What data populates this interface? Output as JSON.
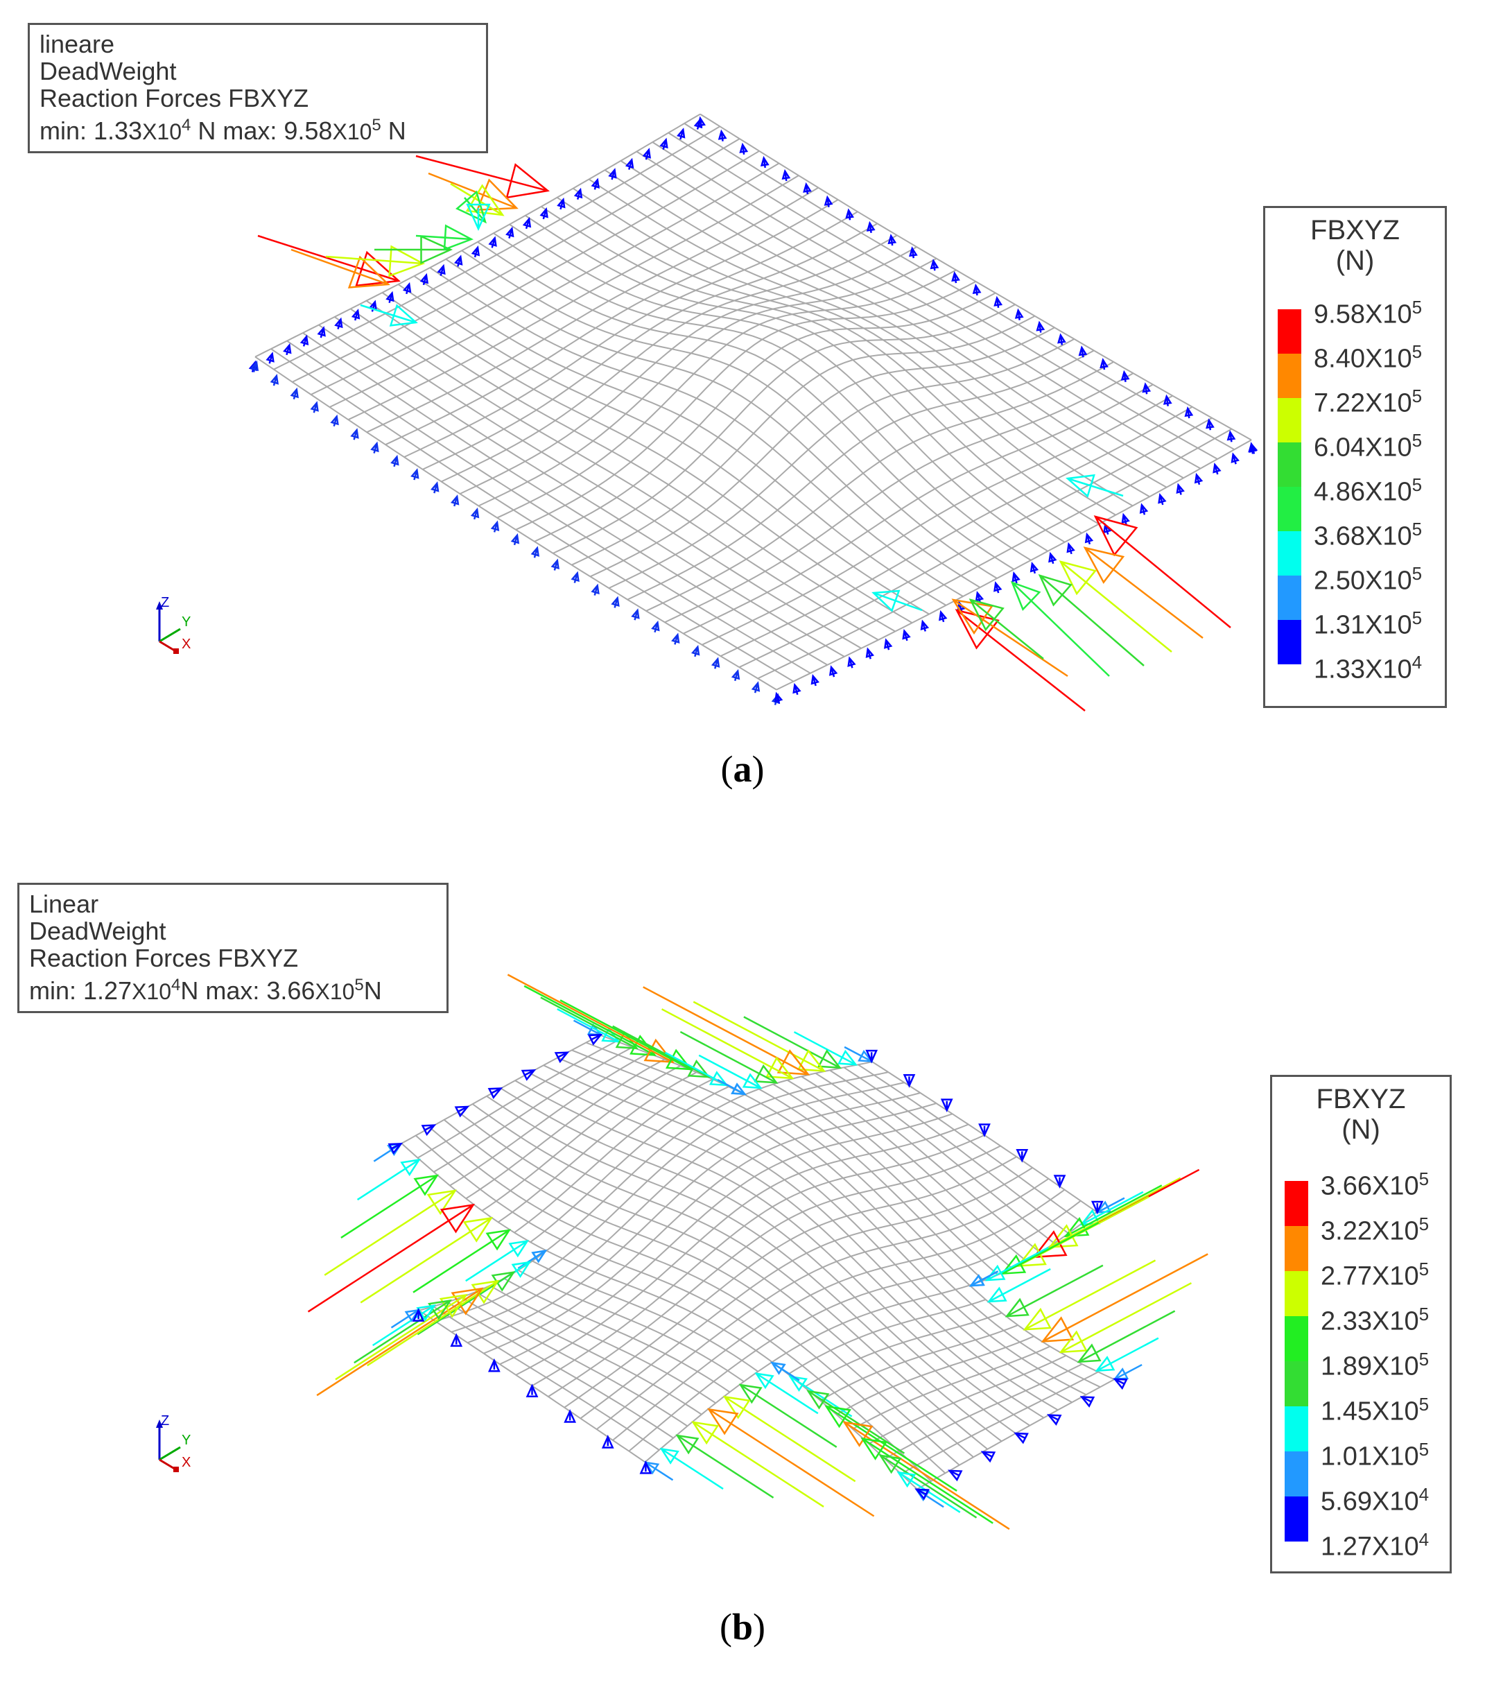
{
  "panel_a": {
    "info": {
      "line1": "lineare",
      "line2": "DeadWeight",
      "line3": "Reaction Forces FBXYZ",
      "range_prefix": "min: 1.33",
      "range_min_times": "X10",
      "range_min_exp": "4",
      "range_mid": " N max: 9.58",
      "range_max_times": "X10",
      "range_max_exp": "5",
      "range_suffix": " N"
    },
    "legend": {
      "title": "FBXYZ",
      "unit": "(N)",
      "ticks": [
        {
          "mant": "9.58",
          "exp": "5"
        },
        {
          "mant": "8.40",
          "exp": "5"
        },
        {
          "mant": "7.22",
          "exp": "5"
        },
        {
          "mant": "6.04",
          "exp": "5"
        },
        {
          "mant": "4.86",
          "exp": "5"
        },
        {
          "mant": "3.68",
          "exp": "5"
        },
        {
          "mant": "2.50",
          "exp": "5"
        },
        {
          "mant": "1.31",
          "exp": "5"
        },
        {
          "mant": "1.33",
          "exp": "4"
        }
      ],
      "colors": [
        "#ff0000",
        "#ff8800",
        "#ccff00",
        "#33dd33",
        "#22ee44",
        "#00ffee",
        "#2299ff",
        "#0000ff"
      ]
    },
    "caption": "a"
  },
  "panel_b": {
    "info": {
      "line1": "Linear",
      "line2": "DeadWeight",
      "line3": "Reaction Forces FBXYZ",
      "range_prefix": "min: 1.27",
      "range_min_times": "X10",
      "range_min_exp": "4",
      "range_mid": "N max: 3.66",
      "range_max_times": "X10",
      "range_max_exp": "5",
      "range_suffix": "N"
    },
    "legend": {
      "title": "FBXYZ",
      "unit": "(N)",
      "ticks": [
        {
          "mant": "3.66",
          "exp": "5"
        },
        {
          "mant": "3.22",
          "exp": "5"
        },
        {
          "mant": "2.77",
          "exp": "5"
        },
        {
          "mant": "2.33",
          "exp": "5"
        },
        {
          "mant": "1.89",
          "exp": "5"
        },
        {
          "mant": "1.45",
          "exp": "5"
        },
        {
          "mant": "1.01",
          "exp": "5"
        },
        {
          "mant": "5.69",
          "exp": "4"
        },
        {
          "mant": "1.27",
          "exp": "4"
        }
      ],
      "colors": [
        "#ff0000",
        "#ff8800",
        "#ccff00",
        "#22ee22",
        "#33dd33",
        "#00ffee",
        "#2299ff",
        "#0000ff"
      ]
    },
    "caption": "b"
  },
  "axes_labels": {
    "z": "Z",
    "y": "Y",
    "x": "X"
  }
}
